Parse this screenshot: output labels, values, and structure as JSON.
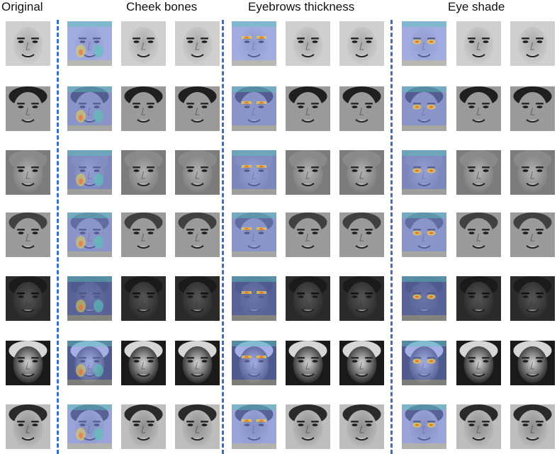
{
  "headers": {
    "original": "Original",
    "cheek_bones": "Cheek bones",
    "eyebrows_thickness": "Eyebrows thickness",
    "eye_shade": "Eye shade"
  },
  "colors": {
    "divider": "#3a6fc9",
    "heatmap_base": "#7d8ff0",
    "heatmap_hot": "#ff5a2a",
    "heatmap_warm": "#e9d34a",
    "heatmap_mid": "#59c7b8"
  },
  "rows": [
    {
      "bg": "#cfcfcf",
      "skin": "#a9a9a9",
      "hair": "#cfcfcf",
      "dark": false
    },
    {
      "bg": "#9a9a9a",
      "skin": "#9b9b9b",
      "hair": "#1f1f1f",
      "dark": false
    },
    {
      "bg": "#7c7c7c",
      "skin": "#b2b2b2",
      "hair": "#8a8a8a",
      "dark": false
    },
    {
      "bg": "#9a9a9a",
      "skin": "#9c9c9c",
      "hair": "#404040",
      "dark": false
    },
    {
      "bg": "#2a2a2a",
      "skin": "#555555",
      "hair": "#1a1a1a",
      "dark": true
    },
    {
      "bg": "#1a1a1a",
      "skin": "#d6d6d6",
      "hair": "#d6d6d6",
      "dark": false
    },
    {
      "bg": "#bdbdbd",
      "skin": "#8e8e8e",
      "hair": "#2a2a2a",
      "dark": false
    }
  ]
}
